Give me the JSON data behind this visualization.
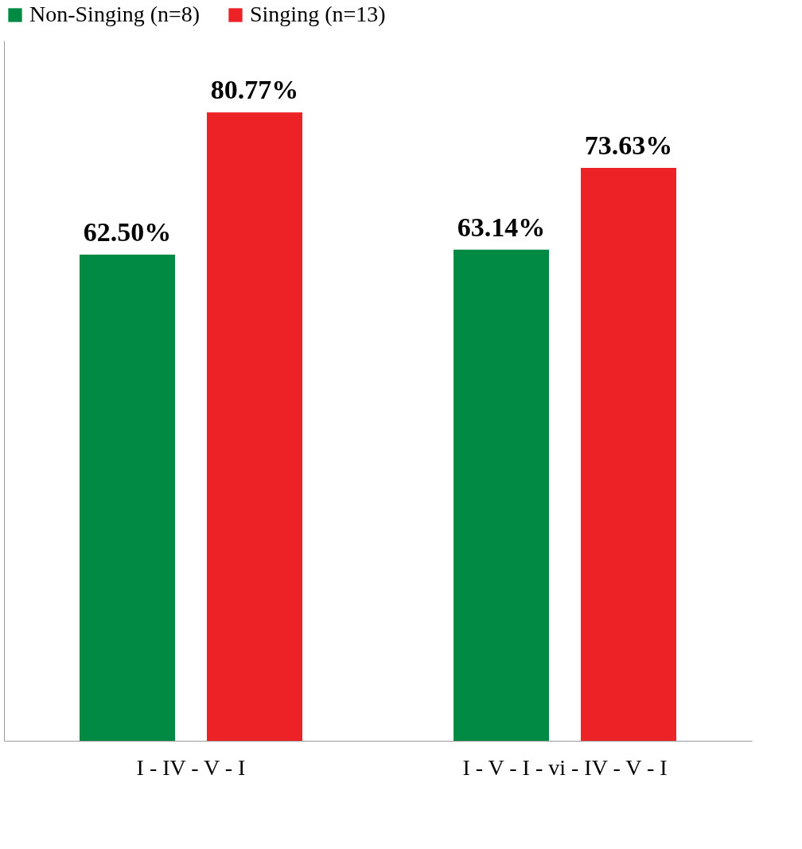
{
  "chart_data": {
    "type": "bar",
    "categories": [
      "I - IV - V - I",
      "I - V - I - vi - IV - V - I"
    ],
    "series": [
      {
        "name": "Non-Singing (n=8)",
        "color": "#008a44",
        "values": [
          62.5,
          63.14
        ],
        "value_labels": [
          "62.50%",
          "63.14%"
        ]
      },
      {
        "name": "Singing (n=13)",
        "color": "#ec2227",
        "values": [
          80.77,
          73.63
        ],
        "value_labels": [
          "80.77%",
          "73.63%"
        ]
      }
    ],
    "ylim": [
      0,
      90
    ],
    "tick_labels": "x",
    "grid": false,
    "legend": "top"
  }
}
